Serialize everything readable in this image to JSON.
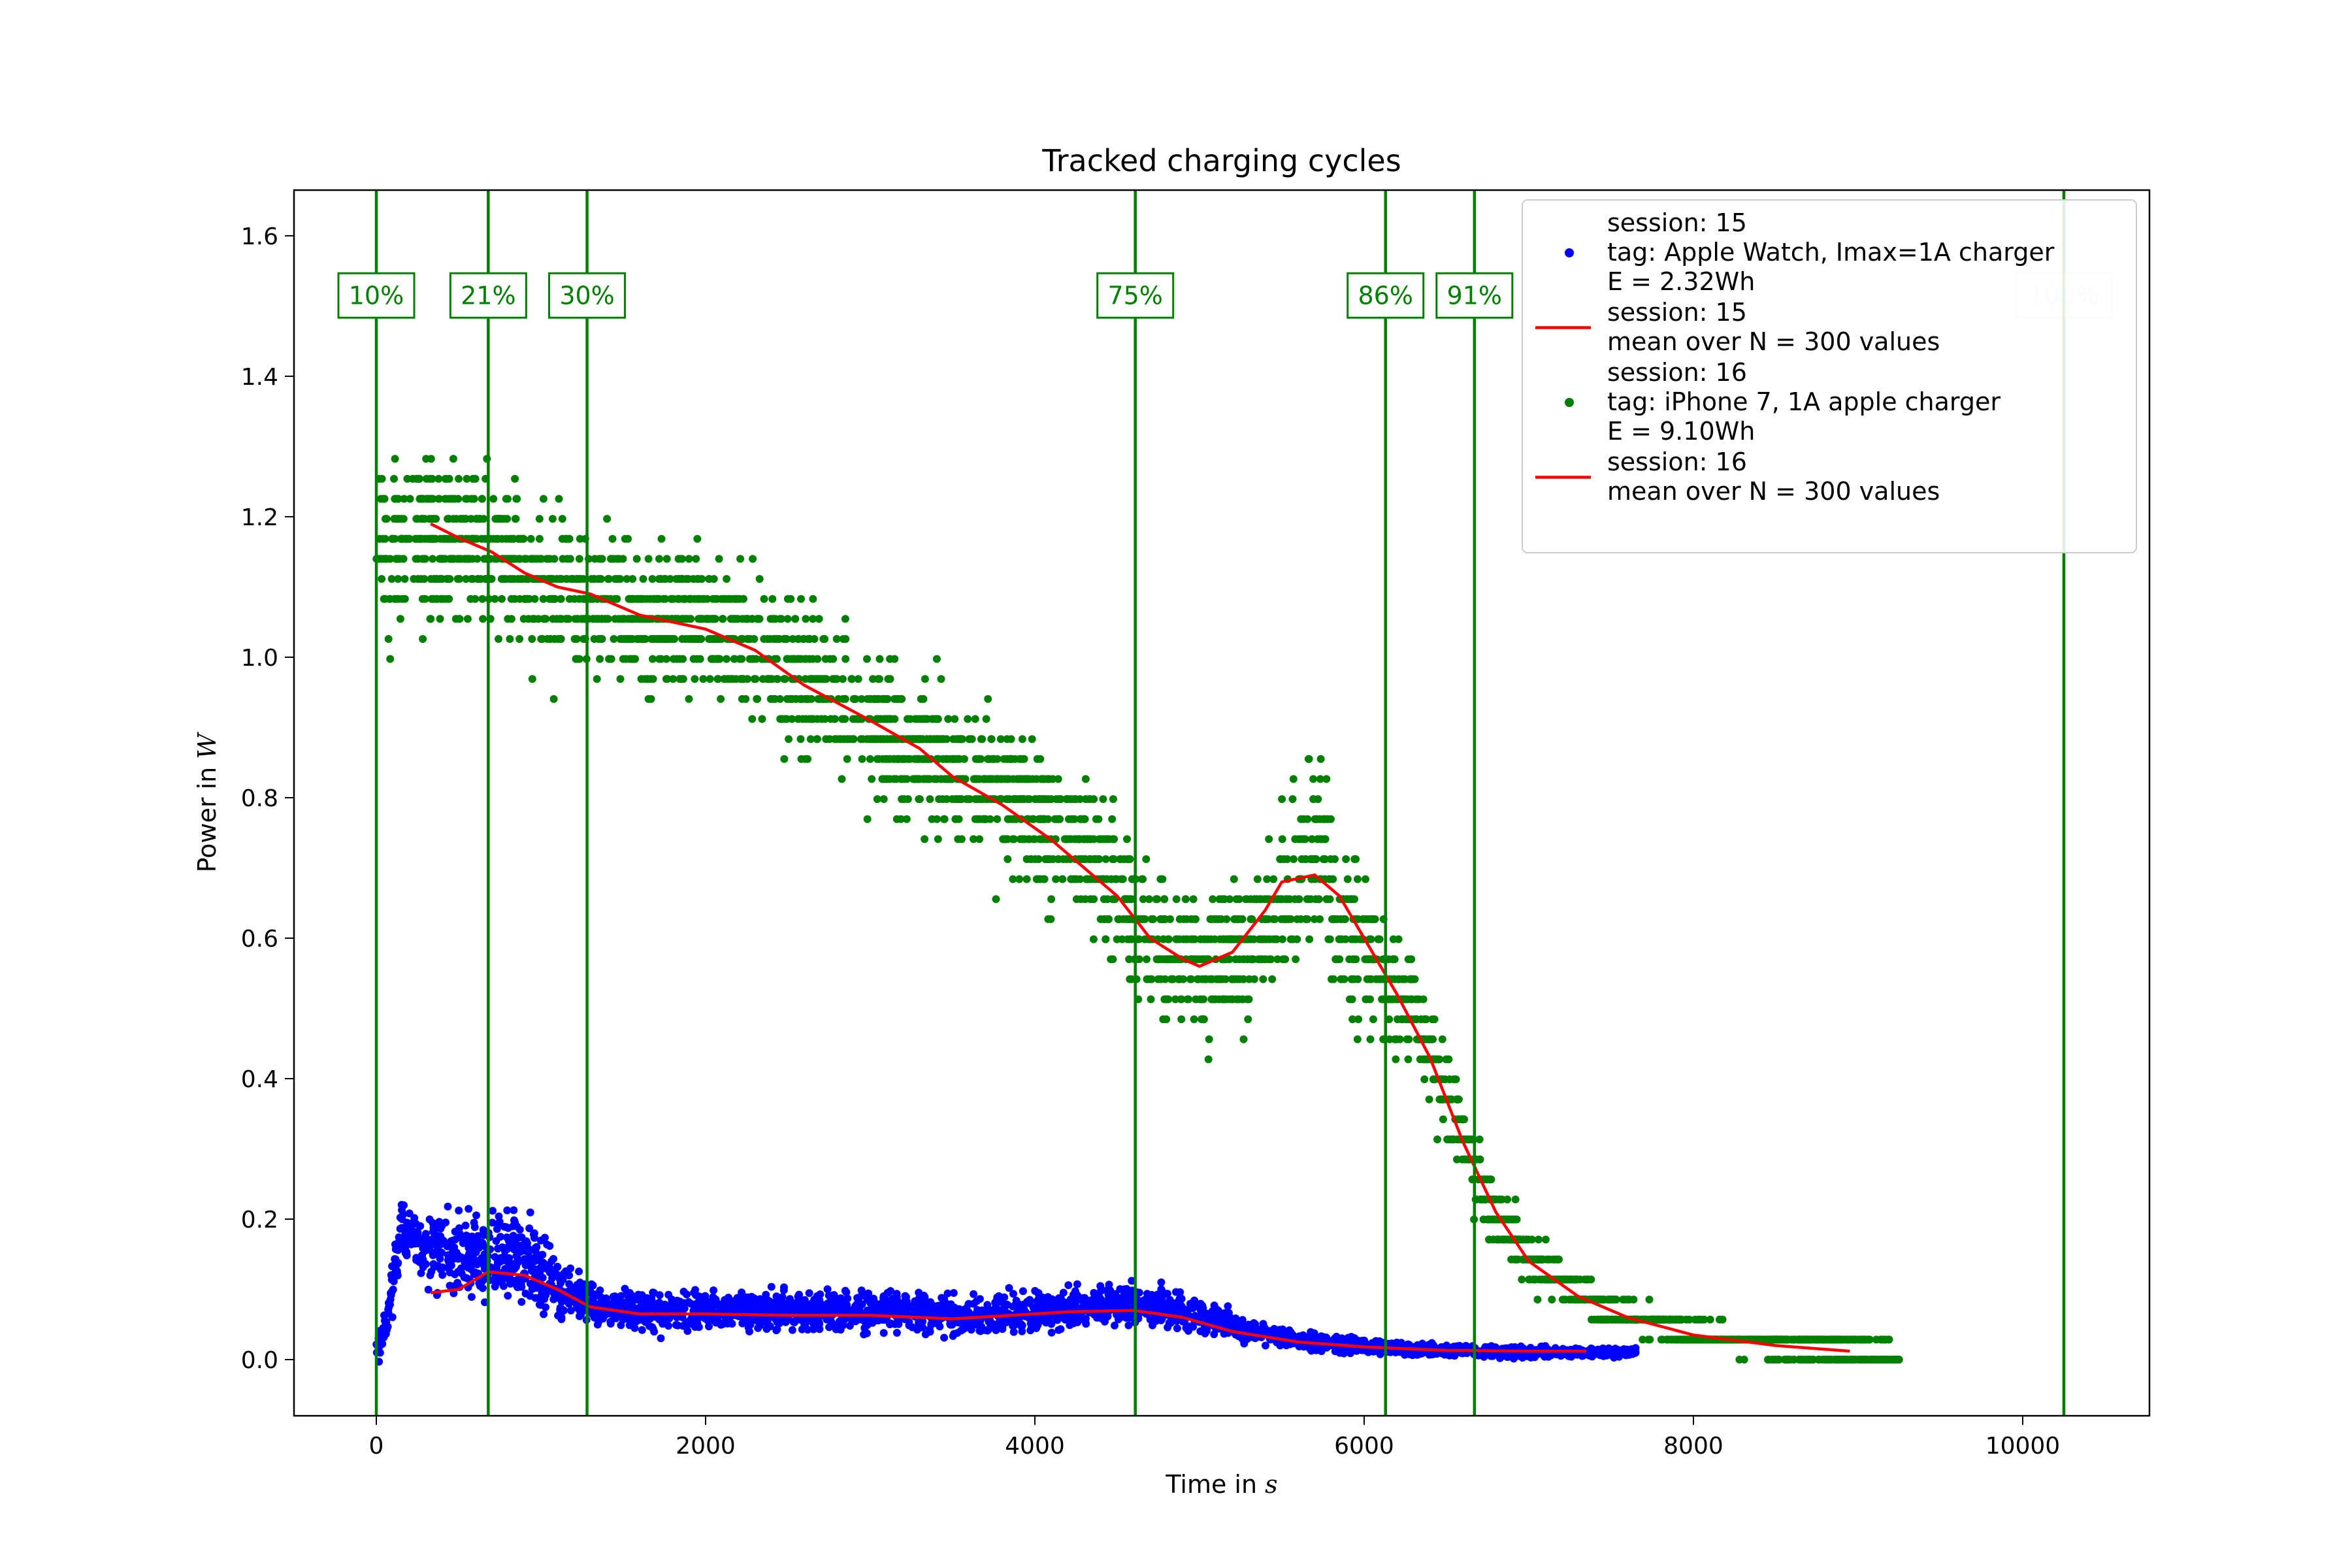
{
  "chart_data": {
    "type": "scatter",
    "title": "Tracked charging cycles",
    "xlabel_prefix": "Time in ",
    "xlabel_unit": "s",
    "ylabel_prefix": "Power in ",
    "ylabel_unit": "W",
    "xlim": [
      -500,
      10770
    ],
    "ylim": [
      -0.08,
      1.665
    ],
    "xticks": [
      0,
      2000,
      4000,
      6000,
      8000,
      10000
    ],
    "yticks": [
      0.0,
      0.2,
      0.4,
      0.6,
      0.8,
      1.0,
      1.2,
      1.4,
      1.6
    ],
    "ytick_labels": [
      "0.0",
      "0.2",
      "0.4",
      "0.6",
      "0.8",
      "1.0",
      "1.2",
      "1.4",
      "1.6"
    ],
    "grid": false,
    "legend_position": "top-right",
    "colors": {
      "session15": "#0000ff",
      "session16": "#008000",
      "mean": "#ff0000",
      "marker": "#008000"
    },
    "legend": [
      {
        "kind": "dot",
        "color": "#0000ff",
        "lines": [
          "session: 15",
          "tag: Apple Watch, Imax=1A charger",
          "E = 2.32Wh"
        ]
      },
      {
        "kind": "line",
        "color": "#ff0000",
        "lines": [
          "session: 15",
          "mean over N = 300 values"
        ]
      },
      {
        "kind": "dot",
        "color": "#008000",
        "lines": [
          "session: 16",
          "tag: iPhone 7, 1A apple charger",
          "E = 9.10Wh"
        ]
      },
      {
        "kind": "line",
        "color": "#ff0000",
        "lines": [
          "session: 16",
          "mean over N = 300 values"
        ]
      }
    ],
    "charge_markers": [
      {
        "x": 0,
        "label": "10%"
      },
      {
        "x": 680,
        "label": "21%"
      },
      {
        "x": 1280,
        "label": "30%"
      },
      {
        "x": 4610,
        "label": "75%"
      },
      {
        "x": 6130,
        "label": "86%"
      },
      {
        "x": 6670,
        "label": "91%"
      },
      {
        "x": 10250,
        "label": "100%"
      }
    ],
    "series": [
      {
        "name": "session: 15",
        "kind": "scatter",
        "color": "#0000ff",
        "x_range": [
          0,
          7650
        ],
        "trend": [
          [
            0,
            0.01
          ],
          [
            60,
            0.05
          ],
          [
            150,
            0.19
          ],
          [
            250,
            0.16
          ],
          [
            500,
            0.15
          ],
          [
            700,
            0.14
          ],
          [
            900,
            0.14
          ],
          [
            1100,
            0.1
          ],
          [
            1300,
            0.08
          ],
          [
            1600,
            0.07
          ],
          [
            2000,
            0.07
          ],
          [
            3000,
            0.07
          ],
          [
            3700,
            0.06
          ],
          [
            4000,
            0.07
          ],
          [
            4600,
            0.08
          ],
          [
            4900,
            0.07
          ],
          [
            5300,
            0.04
          ],
          [
            5700,
            0.025
          ],
          [
            6200,
            0.015
          ],
          [
            7000,
            0.01
          ],
          [
            7650,
            0.01
          ]
        ],
        "noise": [
          [
            0,
            0.02
          ],
          [
            300,
            0.05
          ],
          [
            900,
            0.05
          ],
          [
            1300,
            0.025
          ],
          [
            4000,
            0.025
          ],
          [
            4800,
            0.025
          ],
          [
            5500,
            0.01
          ],
          [
            7650,
            0.005
          ]
        ]
      },
      {
        "name": "session: 16",
        "kind": "scatter",
        "color": "#008000",
        "x_range": [
          0,
          9250
        ],
        "trend": [
          [
            0,
            1.15
          ],
          [
            300,
            1.18
          ],
          [
            700,
            1.15
          ],
          [
            1000,
            1.1
          ],
          [
            1500,
            1.07
          ],
          [
            2000,
            1.04
          ],
          [
            2500,
            0.98
          ],
          [
            3000,
            0.91
          ],
          [
            3500,
            0.84
          ],
          [
            4000,
            0.78
          ],
          [
            4300,
            0.73
          ],
          [
            4600,
            0.64
          ],
          [
            4800,
            0.59
          ],
          [
            5000,
            0.55
          ],
          [
            5300,
            0.58
          ],
          [
            5500,
            0.66
          ],
          [
            5750,
            0.75
          ],
          [
            5850,
            0.6
          ],
          [
            6100,
            0.56
          ],
          [
            6300,
            0.5
          ],
          [
            6500,
            0.38
          ],
          [
            6700,
            0.25
          ],
          [
            7000,
            0.14
          ],
          [
            7500,
            0.07
          ],
          [
            8000,
            0.035
          ],
          [
            8500,
            0.02
          ],
          [
            9250,
            0.01
          ]
        ],
        "noise": [
          [
            0,
            0.1
          ],
          [
            2000,
            0.09
          ],
          [
            4500,
            0.09
          ],
          [
            5200,
            0.08
          ],
          [
            5800,
            0.1
          ],
          [
            6300,
            0.07
          ],
          [
            6700,
            0.04
          ],
          [
            7200,
            0.02
          ],
          [
            9250,
            0.005
          ]
        ]
      },
      {
        "name": "session: 15",
        "kind": "line",
        "color": "#ff0000",
        "x": [
          330,
          500,
          680,
          900,
          1100,
          1300,
          1600,
          2000,
          2500,
          3000,
          3500,
          4000,
          4200,
          4600,
          4900,
          5200,
          5600,
          6000,
          6500,
          7000,
          7350
        ],
        "y": [
          0.095,
          0.1,
          0.125,
          0.12,
          0.1,
          0.075,
          0.065,
          0.065,
          0.063,
          0.063,
          0.058,
          0.065,
          0.068,
          0.07,
          0.06,
          0.04,
          0.025,
          0.018,
          0.013,
          0.012,
          0.012
        ]
      },
      {
        "name": "session: 16",
        "kind": "line",
        "color": "#ff0000",
        "x": [
          330,
          500,
          700,
          900,
          1100,
          1300,
          1600,
          2000,
          2300,
          2600,
          3000,
          3300,
          3500,
          3800,
          4100,
          4300,
          4500,
          4700,
          4900,
          5000,
          5200,
          5400,
          5500,
          5700,
          5850,
          6000,
          6200,
          6400,
          6600,
          6800,
          7000,
          7300,
          7600,
          8000,
          8500,
          8950
        ],
        "y": [
          1.19,
          1.17,
          1.15,
          1.12,
          1.1,
          1.09,
          1.06,
          1.04,
          1.01,
          0.96,
          0.91,
          0.87,
          0.83,
          0.79,
          0.74,
          0.7,
          0.66,
          0.6,
          0.57,
          0.56,
          0.58,
          0.64,
          0.68,
          0.69,
          0.66,
          0.6,
          0.52,
          0.43,
          0.31,
          0.21,
          0.14,
          0.09,
          0.06,
          0.035,
          0.02,
          0.012
        ]
      }
    ]
  }
}
